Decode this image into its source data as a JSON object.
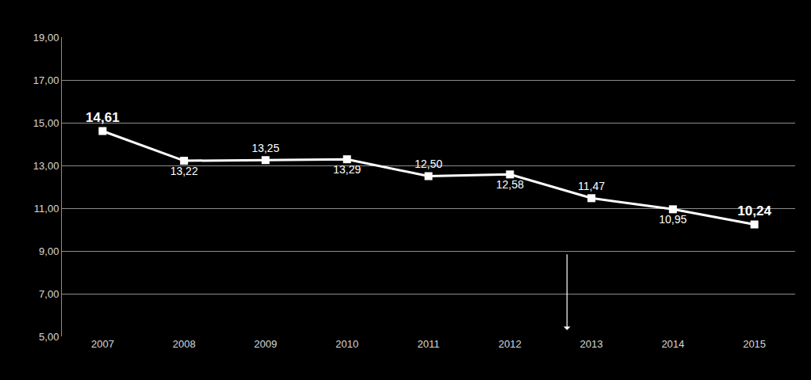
{
  "chart_data": {
    "type": "line",
    "categories": [
      "2007",
      "2008",
      "2009",
      "2010",
      "2011",
      "2012",
      "2013",
      "2014",
      "2015"
    ],
    "values": [
      14.61,
      13.22,
      13.25,
      13.29,
      12.5,
      12.58,
      11.47,
      10.95,
      10.24
    ],
    "value_labels": [
      "14,61",
      "13,22",
      "13,25",
      "13,29",
      "12,50",
      "12,58",
      "11,47",
      "10,95",
      "10,24"
    ],
    "color": "#ffffff",
    "marker": "square",
    "data_labels": true,
    "ylim": [
      5,
      19
    ],
    "yticks": [
      {
        "value": 5,
        "label": "5,00"
      },
      {
        "value": 7,
        "label": "7,00"
      },
      {
        "value": 9,
        "label": "9,00"
      },
      {
        "value": 11,
        "label": "11,00"
      },
      {
        "value": 13,
        "label": "13,00"
      },
      {
        "value": 15,
        "label": "15,00"
      },
      {
        "value": 17,
        "label": "17,00"
      },
      {
        "value": 19,
        "label": "19,00"
      }
    ],
    "grid": true
  }
}
